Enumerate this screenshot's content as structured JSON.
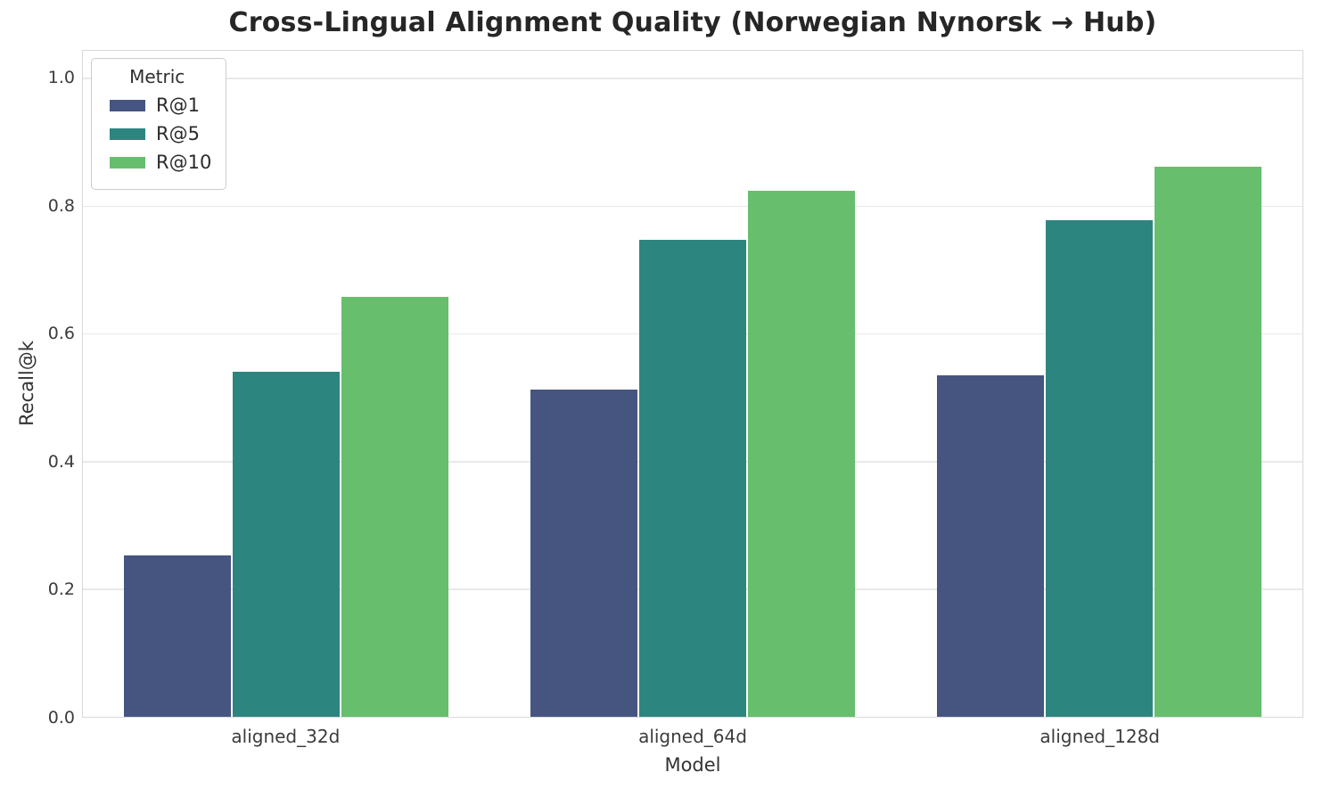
{
  "chart_data": {
    "type": "bar",
    "title": "Cross-Lingual Alignment Quality (Norwegian Nynorsk → Hub)",
    "xlabel": "Model",
    "ylabel": "Recall@k",
    "categories": [
      "aligned_32d",
      "aligned_64d",
      "aligned_128d"
    ],
    "series": [
      {
        "name": "R@1",
        "color": "#465580",
        "values": [
          0.253,
          0.512,
          0.535
        ]
      },
      {
        "name": "R@5",
        "color": "#2d8580",
        "values": [
          0.54,
          0.747,
          0.778
        ]
      },
      {
        "name": "R@10",
        "color": "#67be6d",
        "values": [
          0.658,
          0.824,
          0.862
        ]
      }
    ],
    "legend": {
      "title": "Metric",
      "position": "upper left"
    },
    "yticks": [
      0.0,
      0.2,
      0.4,
      0.6,
      0.8,
      1.0
    ],
    "ylim": [
      0,
      1.043
    ],
    "grid": true,
    "colors": {
      "gridline": "#e9e9e9",
      "plot_border": "#d9d9d9",
      "background": "#ffffff"
    }
  }
}
